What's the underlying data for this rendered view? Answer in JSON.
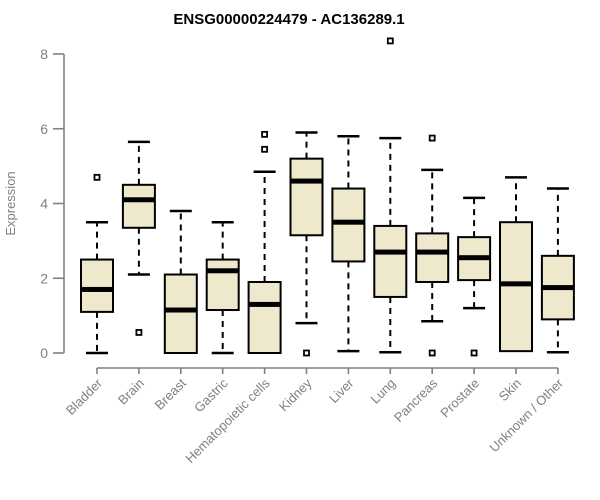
{
  "chart_data": {
    "type": "boxplot",
    "title": "ENSG00000224479 - AC136289.1",
    "xlabel": "",
    "ylabel": "Expression",
    "ylim": [
      0,
      8.5
    ],
    "yticks": [
      0,
      2,
      4,
      6,
      8
    ],
    "grid": false,
    "legend": "none",
    "colors": {
      "box_fill": "#EEE8CD",
      "box_border": "#000000",
      "median": "#000000",
      "outlier_fill": "#ffffff",
      "outlier_border": "#000000",
      "axis": "#808080",
      "tick_text": "#808080",
      "title_text": "#000000",
      "background": "#ffffff"
    },
    "categories": [
      {
        "label": "Bladder",
        "whisker_low": 0,
        "q1": 1.1,
        "median": 1.7,
        "q3": 2.5,
        "whisker_high": 3.5,
        "outliers": [
          4.7
        ]
      },
      {
        "label": "Brain",
        "whisker_low": 2.1,
        "q1": 3.35,
        "median": 4.1,
        "q3": 4.5,
        "whisker_high": 5.65,
        "outliers": [
          0.55
        ]
      },
      {
        "label": "Breast",
        "whisker_low": 0,
        "q1": 0,
        "median": 1.15,
        "q3": 2.1,
        "whisker_high": 3.8,
        "outliers": []
      },
      {
        "label": "Gastric",
        "whisker_low": 0,
        "q1": 1.15,
        "median": 2.2,
        "q3": 2.5,
        "whisker_high": 3.5,
        "outliers": []
      },
      {
        "label": "Hematopoietic cells",
        "whisker_low": 0,
        "q1": 0,
        "median": 1.3,
        "q3": 1.9,
        "whisker_high": 4.85,
        "outliers": [
          5.45,
          5.85
        ]
      },
      {
        "label": "Kidney",
        "whisker_low": 0.8,
        "q1": 3.15,
        "median": 4.6,
        "q3": 5.2,
        "whisker_high": 5.9,
        "outliers": [
          0
        ]
      },
      {
        "label": "Liver",
        "whisker_low": 0.05,
        "q1": 2.45,
        "median": 3.5,
        "q3": 4.4,
        "whisker_high": 5.8,
        "outliers": []
      },
      {
        "label": "Lung",
        "whisker_low": 0.02,
        "q1": 1.5,
        "median": 2.7,
        "q3": 3.4,
        "whisker_high": 5.75,
        "outliers": [
          8.35
        ]
      },
      {
        "label": "Pancreas",
        "whisker_low": 0.85,
        "q1": 1.9,
        "median": 2.7,
        "q3": 3.2,
        "whisker_high": 4.9,
        "outliers": [
          5.75,
          0
        ]
      },
      {
        "label": "Prostate",
        "whisker_low": 1.2,
        "q1": 1.95,
        "median": 2.55,
        "q3": 3.1,
        "whisker_high": 4.15,
        "outliers": [
          0
        ]
      },
      {
        "label": "Skin",
        "whisker_low": 0.05,
        "q1": 0.05,
        "median": 1.85,
        "q3": 3.5,
        "whisker_high": 4.7,
        "outliers": []
      },
      {
        "label": "Unknown / Other",
        "whisker_low": 0.02,
        "q1": 0.9,
        "median": 1.75,
        "q3": 2.6,
        "whisker_high": 4.4,
        "outliers": []
      }
    ]
  }
}
